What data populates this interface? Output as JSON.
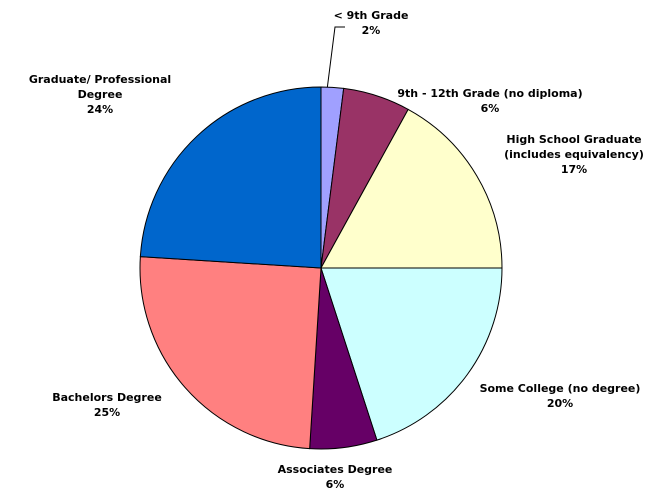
{
  "chart_data": {
    "type": "pie",
    "categories": [
      "< 9th Grade",
      "9th - 12th Grade (no diploma)",
      "High School Graduate (includes equivalency)",
      "Some College (no degree)",
      "Associates Degree",
      "Bachelors Degree",
      "Graduate/ Professional Degree"
    ],
    "values": [
      2,
      6,
      17,
      20,
      6,
      25,
      24
    ],
    "value_labels": [
      "2%",
      "6%",
      "17%",
      "20%",
      "6%",
      "25%",
      "24%"
    ],
    "colors": [
      "#a0a0ff",
      "#993366",
      "#ffffcc",
      "#ccffff",
      "#660066",
      "#ff8080",
      "#0066cc"
    ]
  }
}
